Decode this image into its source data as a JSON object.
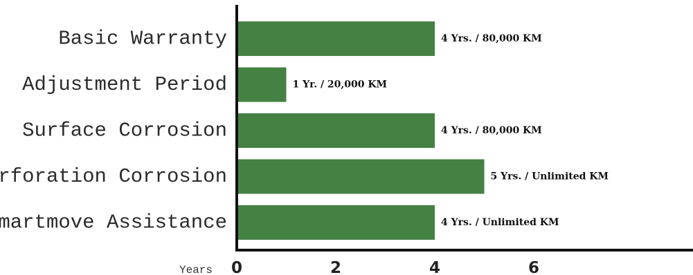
{
  "chart_data": {
    "type": "bar",
    "orientation": "horizontal",
    "xlabel": "Years",
    "categories": [
      "Basic Warranty",
      "Adjustment Period",
      "Surface Corrosion",
      "Perforation Corrosion",
      "smartmove Assistance"
    ],
    "values": [
      4,
      1,
      4,
      5,
      4
    ],
    "data_labels": [
      "4 Yrs. / 80,000 KM",
      "1 Yr. / 20,000 KM",
      "4 Yrs. / 80,000 KM",
      "5 Yrs. / Unlimited KM",
      "4 Yrs. / Unlimited KM"
    ],
    "x_ticks": [
      0,
      2,
      4,
      6
    ],
    "xlim": [
      0,
      9
    ],
    "grid": false,
    "colors": {
      "bar": "#458143",
      "axis": "#111111"
    }
  }
}
